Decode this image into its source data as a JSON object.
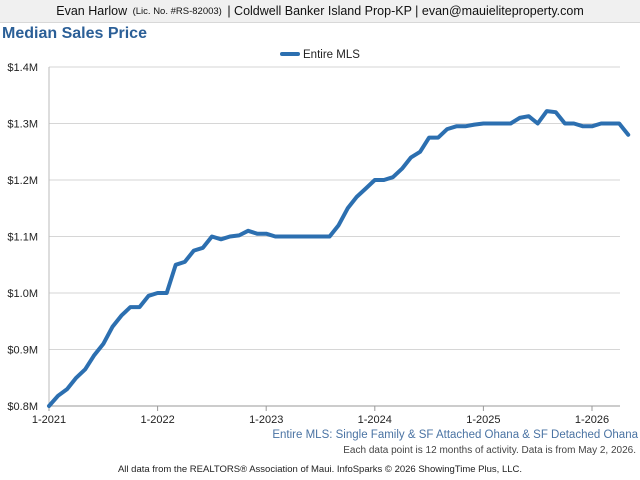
{
  "header": {
    "agent_name": "Evan Harlow",
    "license": "(Lic. No. #RS-82003)",
    "brokerage": "| Coldwell Banker Island Prop-KP |",
    "email": "evan@mauieliteproperty.com"
  },
  "chart_data": {
    "type": "line",
    "title": "Median Sales Price",
    "xlabel": "",
    "ylabel": "",
    "subtitle": "Entire MLS: Single Family & SF Attached Ohana & SF Detached Ohana",
    "ylim": [
      800000,
      1400000
    ],
    "y_ticks": [
      800000,
      900000,
      1000000,
      1100000,
      1200000,
      1300000,
      1400000
    ],
    "y_tick_labels": [
      "$0.8M",
      "$0.9M",
      "$1.0M",
      "$1.1M",
      "$1.2M",
      "$1.3M",
      "$1.4M"
    ],
    "x_ticks": [
      "1-2021",
      "1-2022",
      "1-2023",
      "1-2024",
      "1-2025",
      "1-2026"
    ],
    "x_start": "2021-01",
    "grid": true,
    "legend_position": "top-center",
    "series": [
      {
        "name": "Entire MLS",
        "color": "#2c6fb0",
        "values": [
          800000,
          818000,
          830000,
          850000,
          865000,
          890000,
          910000,
          940000,
          960000,
          975000,
          975000,
          995000,
          1000000,
          1000000,
          1050000,
          1055000,
          1075000,
          1080000,
          1100000,
          1095000,
          1100000,
          1102000,
          1110000,
          1105000,
          1105000,
          1100000,
          1100000,
          1100000,
          1100000,
          1100000,
          1100000,
          1100000,
          1120000,
          1150000,
          1170000,
          1185000,
          1200000,
          1200000,
          1205000,
          1220000,
          1240000,
          1250000,
          1275000,
          1275000,
          1290000,
          1295000,
          1295000,
          1298000,
          1300000,
          1300000,
          1300000,
          1300000,
          1310000,
          1313000,
          1300000,
          1322000,
          1320000,
          1300000,
          1300000,
          1295000,
          1295000,
          1300000,
          1300000,
          1300000,
          1280000
        ]
      }
    ]
  },
  "note": "Each data point is 12 months of activity. Data is from May 2, 2026.",
  "footer": "All data from the REALTORS® Association of Maui. InfoSparks © 2026 ShowingTime Plus, LLC."
}
